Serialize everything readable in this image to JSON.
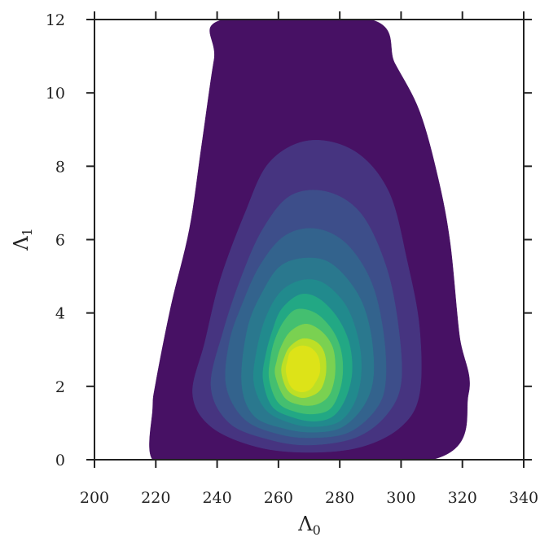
{
  "chart_data": {
    "type": "contour",
    "title": "",
    "xlabel": "Λ",
    "xlabel_sub": "0",
    "ylabel": "Λ",
    "ylabel_sub": "1",
    "xlim": [
      200,
      340
    ],
    "ylim": [
      0,
      12
    ],
    "xticks": [
      "200",
      "220",
      "240",
      "260",
      "280",
      "300",
      "320",
      "340"
    ],
    "yticks": [
      "0",
      "2",
      "4",
      "6",
      "8",
      "10",
      "12"
    ],
    "grid": false,
    "colormap": "viridis",
    "peak": {
      "x": 267,
      "y": 2.4
    },
    "levels": [
      {
        "color": "#471164",
        "extent": [
          [
            219,
            0
          ],
          [
            233,
            0
          ],
          [
            310,
            0
          ],
          [
            322,
            1.8
          ],
          [
            319,
            3.4
          ],
          [
            316,
            5.9
          ],
          [
            312,
            7.7
          ],
          [
            306,
            9.5
          ],
          [
            298,
            10.8
          ],
          [
            290,
            12
          ],
          [
            242,
            12
          ],
          [
            239,
            10.9
          ],
          [
            235,
            8.6
          ],
          [
            231,
            6.3
          ],
          [
            225,
            4.2
          ],
          [
            220,
            2.1
          ],
          [
            219,
            1.4
          ]
        ]
      },
      {
        "color": "#463480",
        "extent": [
          [
            232,
            1.8
          ],
          [
            238,
            0.9
          ],
          [
            253,
            0.35
          ],
          [
            270,
            0.2
          ],
          [
            287,
            0.35
          ],
          [
            300,
            0.9
          ],
          [
            306,
            1.8
          ],
          [
            306,
            3.6
          ],
          [
            302,
            5.4
          ],
          [
            296,
            7.3
          ],
          [
            285,
            8.4
          ],
          [
            270,
            8.7
          ],
          [
            257,
            8.1
          ],
          [
            249,
            6.7
          ],
          [
            241,
            4.9
          ],
          [
            236,
            3.2
          ]
        ]
      },
      {
        "color": "#3d4e8a",
        "extent": [
          [
            238,
            2.0
          ],
          [
            244,
            1.0
          ],
          [
            257,
            0.55
          ],
          [
            270,
            0.4
          ],
          [
            285,
            0.6
          ],
          [
            295,
            1.2
          ],
          [
            300,
            2.1
          ],
          [
            299,
            3.7
          ],
          [
            295,
            5.3
          ],
          [
            287,
            6.7
          ],
          [
            276,
            7.3
          ],
          [
            264,
            7.2
          ],
          [
            255,
            6.3
          ],
          [
            248,
            5.0
          ],
          [
            242,
            3.5
          ]
        ]
      },
      {
        "color": "#33638d",
        "extent": [
          [
            243,
            2.0
          ],
          [
            249,
            1.1
          ],
          [
            260,
            0.7
          ],
          [
            271,
            0.6
          ],
          [
            283,
            0.75
          ],
          [
            292,
            1.4
          ],
          [
            295,
            2.2
          ],
          [
            294,
            3.6
          ],
          [
            290,
            4.9
          ],
          [
            282,
            5.9
          ],
          [
            272,
            6.3
          ],
          [
            262,
            6.1
          ],
          [
            254,
            5.3
          ],
          [
            248,
            4.2
          ],
          [
            244,
            3.2
          ]
        ]
      },
      {
        "color": "#2a788e",
        "extent": [
          [
            248,
            2.1
          ],
          [
            252,
            1.2
          ],
          [
            262,
            0.85
          ],
          [
            272,
            0.75
          ],
          [
            281,
            0.9
          ],
          [
            288,
            1.5
          ],
          [
            291,
            2.3
          ],
          [
            290,
            3.5
          ],
          [
            286,
            4.5
          ],
          [
            278,
            5.3
          ],
          [
            270,
            5.5
          ],
          [
            261,
            5.3
          ],
          [
            255,
            4.6
          ],
          [
            250,
            3.6
          ]
        ]
      },
      {
        "color": "#218a8d",
        "extent": [
          [
            252,
            2.1
          ],
          [
            256,
            1.35
          ],
          [
            264,
            1.0
          ],
          [
            272,
            0.9
          ],
          [
            280,
            1.05
          ],
          [
            285,
            1.6
          ],
          [
            287,
            2.4
          ],
          [
            286,
            3.3
          ],
          [
            282,
            4.2
          ],
          [
            275,
            4.8
          ],
          [
            268,
            4.9
          ],
          [
            261,
            4.6
          ],
          [
            256,
            3.9
          ],
          [
            253,
            3.0
          ]
        ]
      },
      {
        "color": "#22a884",
        "extent": [
          [
            255,
            2.2
          ],
          [
            258,
            1.45
          ],
          [
            265,
            1.15
          ],
          [
            272,
            1.05
          ],
          [
            278,
            1.2
          ],
          [
            282,
            1.7
          ],
          [
            284,
            2.4
          ],
          [
            283,
            3.2
          ],
          [
            279,
            3.9
          ],
          [
            273,
            4.4
          ],
          [
            267,
            4.5
          ],
          [
            261,
            4.1
          ],
          [
            258,
            3.5
          ],
          [
            256,
            2.9
          ]
        ]
      },
      {
        "color": "#44bf70",
        "extent": [
          [
            257,
            2.2
          ],
          [
            260,
            1.55
          ],
          [
            266,
            1.3
          ],
          [
            272,
            1.25
          ],
          [
            277,
            1.4
          ],
          [
            280,
            1.9
          ],
          [
            281,
            2.5
          ],
          [
            280,
            3.1
          ],
          [
            277,
            3.6
          ],
          [
            272,
            4.0
          ],
          [
            266,
            4.1
          ],
          [
            262,
            3.8
          ],
          [
            259,
            3.3
          ],
          [
            257.5,
            2.8
          ]
        ]
      },
      {
        "color": "#7ad151",
        "extent": [
          [
            259,
            2.3
          ],
          [
            262,
            1.7
          ],
          [
            267,
            1.5
          ],
          [
            272,
            1.5
          ],
          [
            276,
            1.7
          ],
          [
            278,
            2.1
          ],
          [
            278.5,
            2.6
          ],
          [
            277.5,
            3.1
          ],
          [
            274,
            3.5
          ],
          [
            269,
            3.7
          ],
          [
            264,
            3.5
          ],
          [
            261,
            3.1
          ],
          [
            259.5,
            2.7
          ]
        ]
      },
      {
        "color": "#bddf26",
        "extent": [
          [
            261,
            2.4
          ],
          [
            263,
            1.9
          ],
          [
            267,
            1.7
          ],
          [
            271,
            1.75
          ],
          [
            274,
            1.95
          ],
          [
            275.5,
            2.4
          ],
          [
            275,
            2.9
          ],
          [
            272.5,
            3.2
          ],
          [
            268,
            3.3
          ],
          [
            264,
            3.1
          ],
          [
            262,
            2.8
          ]
        ]
      },
      {
        "color": "#dde318",
        "extent": [
          [
            262.5,
            2.4
          ],
          [
            264,
            2.0
          ],
          [
            267,
            1.85
          ],
          [
            270,
            1.9
          ],
          [
            272,
            2.1
          ],
          [
            273.5,
            2.4
          ],
          [
            273,
            2.8
          ],
          [
            270.5,
            3.05
          ],
          [
            267,
            3.1
          ],
          [
            264,
            2.95
          ],
          [
            263,
            2.7
          ]
        ]
      }
    ]
  }
}
